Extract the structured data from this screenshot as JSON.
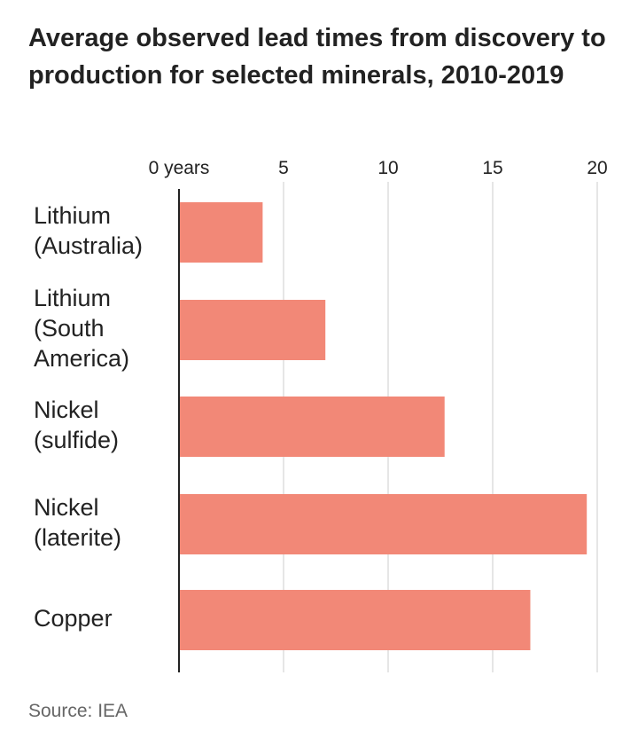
{
  "title": "Average observed lead times from discovery to production for selected minerals, 2010-2019",
  "source": "Source: IEA",
  "colors": {
    "bar": "#f28877",
    "grid": "#dddddd",
    "axis": "#222222",
    "text": "#222222",
    "source_text": "#666666"
  },
  "chart_data": {
    "type": "bar",
    "orientation": "horizontal",
    "title": "Average observed lead times from discovery to production for selected minerals, 2010-2019",
    "xlabel": "",
    "ylabel": "",
    "categories": [
      [
        "Lithium",
        "(Australia)"
      ],
      [
        "Lithium",
        "(South",
        "America)"
      ],
      [
        "Nickel",
        "(sulfide)"
      ],
      [
        "Nickel",
        "(laterite)"
      ],
      [
        "Copper"
      ]
    ],
    "values": [
      4,
      7,
      12.7,
      19.5,
      16.8
    ],
    "xlim": [
      0,
      20
    ],
    "xticks": [
      0,
      5,
      10,
      15,
      20
    ],
    "xtick_labels": [
      "0 years",
      "5",
      "10",
      "15",
      "20"
    ],
    "xaxis_position": "top",
    "grid": true,
    "legend": false
  }
}
